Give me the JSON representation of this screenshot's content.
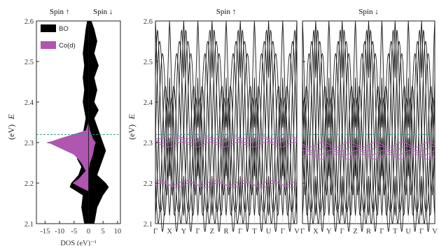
{
  "colors": {
    "bo": "#000000",
    "co_d": "#b055b0",
    "band_black": "#1a1a1a",
    "band_purple": "#bb66bb",
    "fermi_line": "#2e9a8a",
    "grid": "#cccccc"
  },
  "chart_data": [
    {
      "panel": "dos",
      "type": "area",
      "spin_up_label": "Spin ↑",
      "spin_down_label": "Spin ↓",
      "ylabel": "E",
      "yunit": "(eV)",
      "xlabel": "DOS (eV)⁻¹",
      "ylim": [
        2.1,
        2.6
      ],
      "xlim": [
        -18,
        11
      ],
      "yticks": [
        "2.1",
        "2.2",
        "2.3",
        "2.4",
        "2.5",
        "2.6"
      ],
      "xticks": [
        "-15",
        "-10",
        "-5",
        "0",
        "5",
        "10"
      ],
      "legend": [
        "BO",
        "Co(d)"
      ],
      "legend_position": "top-left",
      "fermi_level": 2.32,
      "series": [
        {
          "name": "BO",
          "energy": [
            2.1,
            2.14,
            2.17,
            2.19,
            2.2,
            2.22,
            2.24,
            2.26,
            2.28,
            2.3,
            2.32,
            2.34,
            2.36,
            2.38,
            2.4,
            2.43,
            2.46,
            2.49,
            2.52,
            2.55,
            2.58,
            2.6
          ],
          "up": [
            -1.5,
            -2.5,
            -2,
            -6.5,
            -6,
            -3.5,
            -2.5,
            -4,
            -3.5,
            -14.5,
            -2,
            -1.5,
            -1,
            -1.5,
            -2,
            -1.5,
            -2,
            -1.5,
            -2,
            -1.5,
            -1,
            -0.5
          ],
          "down": [
            2,
            3,
            5,
            7,
            6,
            3,
            4,
            5,
            6,
            5,
            4,
            3,
            2,
            3.5,
            2,
            3,
            2,
            3.5,
            2,
            3,
            2,
            1
          ]
        },
        {
          "name": "Co(d)",
          "energy": [
            2.18,
            2.19,
            2.2,
            2.21,
            2.23,
            2.25,
            2.27,
            2.29,
            2.3,
            2.31,
            2.33,
            2.35
          ],
          "up": [
            0,
            -3,
            -5.5,
            -3.5,
            -1,
            -2.5,
            -5,
            -11,
            -14,
            -10,
            -1,
            0
          ],
          "down": [
            0,
            0,
            0,
            0,
            0,
            0.5,
            1.5,
            2,
            2.5,
            1.5,
            0.5,
            0
          ]
        }
      ]
    },
    {
      "panel": "bands-spin-up",
      "type": "line",
      "title": "Spin ↑",
      "ylabel": "E",
      "yunit": "(eV)",
      "ylim": [
        2.1,
        2.6
      ],
      "yticks": [
        "2.1",
        "2.2",
        "2.3",
        "2.4",
        "2.5",
        "2.6"
      ],
      "kpoints": [
        "Γ",
        "X",
        "Y",
        "Γ",
        "Z",
        "R",
        "Γ",
        "T",
        "U",
        "Γ",
        "V"
      ],
      "fermi_level": 2.32,
      "co_d_bands": [
        2.195,
        2.2,
        2.295,
        2.305,
        2.315
      ]
    },
    {
      "panel": "bands-spin-down",
      "type": "line",
      "title": "Spin ↓",
      "ylim": [
        2.1,
        2.6
      ],
      "kpoints": [
        "Γ",
        "X",
        "Y",
        "Γ",
        "Z",
        "R",
        "Γ",
        "T",
        "U",
        "Γ",
        "V"
      ],
      "fermi_level": 2.32,
      "co_d_bands": [
        2.265,
        2.275,
        2.285,
        2.295
      ]
    }
  ]
}
